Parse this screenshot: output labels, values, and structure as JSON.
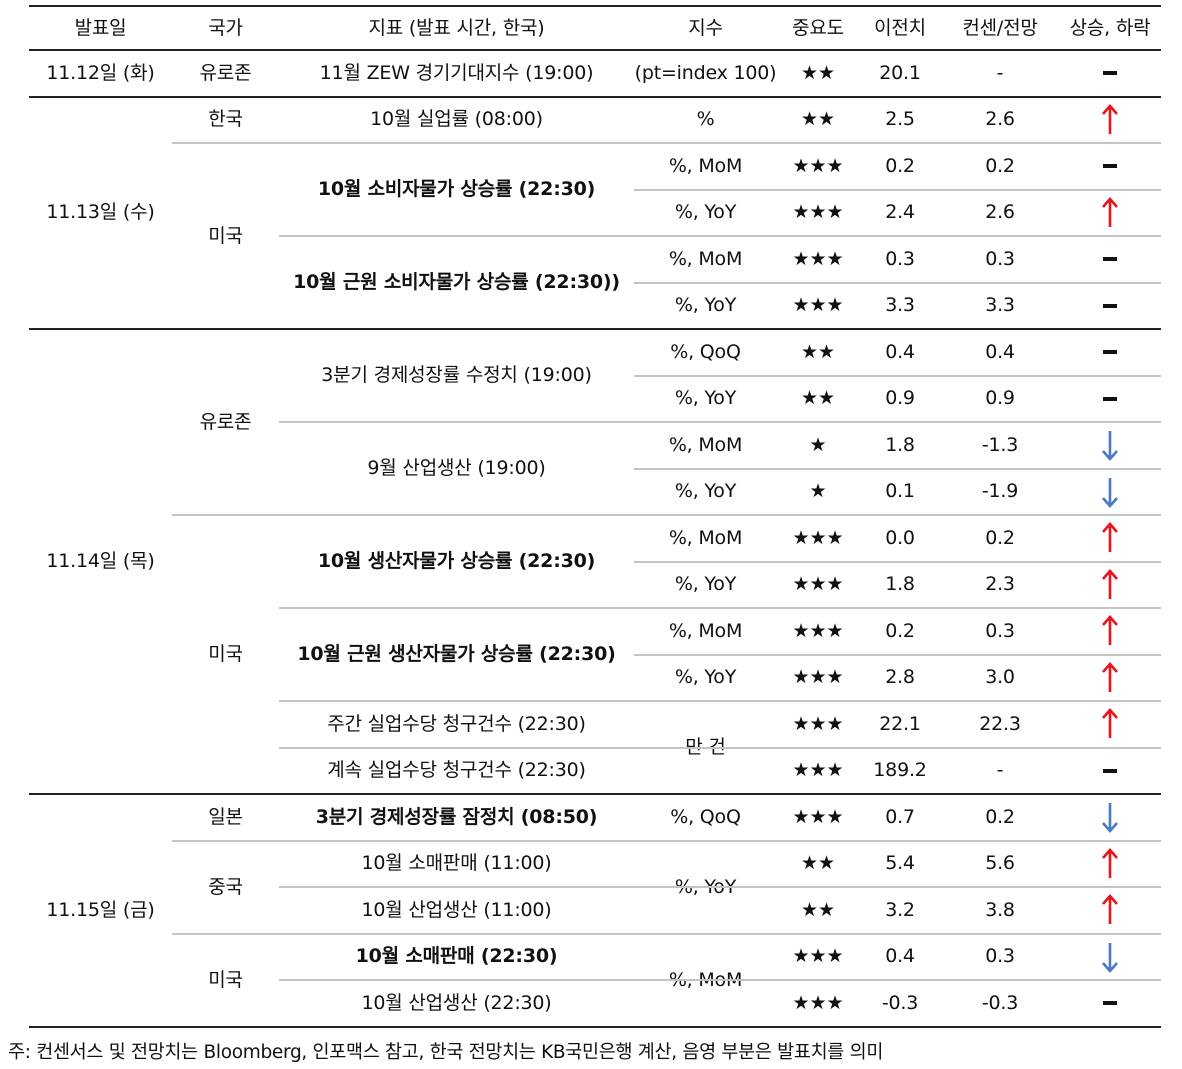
{
  "headers": [
    "발표일",
    "국가",
    "지표 (발표 시간, 한국)",
    "지수",
    "중요도",
    "이전치",
    "컨센/전망",
    "상승, 하락"
  ],
  "colors": {
    "up": "#e8141b",
    "down": "#4a7ac0",
    "flat": "#111111"
  },
  "dates": [
    {
      "label": "11.12일 (화)"
    },
    {
      "label": "11.13일 (수)"
    },
    {
      "label": "11.14일 (목)"
    },
    {
      "label": "11.15일 (금)"
    }
  ],
  "countries": [
    {
      "label": "유로존"
    },
    {
      "label": "한국"
    },
    {
      "label": "미국"
    },
    {
      "label": "유로존"
    },
    {
      "label": "미국"
    },
    {
      "label": "일본"
    },
    {
      "label": "중국"
    },
    {
      "label": "미국"
    }
  ],
  "indicators": [
    {
      "label": "11월 ZEW 경기기대지수 (19:00)",
      "bold": false
    },
    {
      "label": "10월 실업률 (08:00)",
      "bold": false
    },
    {
      "label": "10월 소비자물가 상승률 (22:30)",
      "bold": true
    },
    {
      "label": "10월 근원 소비자물가 상승률 (22:30))",
      "bold": true
    },
    {
      "label": "3분기 경제성장률 수정치 (19:00)",
      "bold": false
    },
    {
      "label": "9월 산업생산 (19:00)",
      "bold": false
    },
    {
      "label": "10월 생산자물가 상승률 (22:30)",
      "bold": true
    },
    {
      "label": "10월 근원 생산자물가 상승률 (22:30)",
      "bold": true
    },
    {
      "label": "주간 실업수당 청구건수 (22:30)",
      "bold": false
    },
    {
      "label": "계속 실업수당 청구건수 (22:30)",
      "bold": false
    },
    {
      "label": "3분기 경제성장률 잠정치 (08:50)",
      "bold": true
    },
    {
      "label": "10월 소매판매 (11:00)",
      "bold": false
    },
    {
      "label": "10월 산업생산 (11:00)",
      "bold": false
    },
    {
      "label": "10월 소매판매 (22:30)",
      "bold": true
    },
    {
      "label": "10월 산업생산 (22:30)",
      "bold": false
    }
  ],
  "units": [
    {
      "label": "(pt=index 100)"
    },
    {
      "label": "%"
    },
    {
      "label": "%, MoM"
    },
    {
      "label": "%, YoY"
    },
    {
      "label": "%, MoM"
    },
    {
      "label": "%, YoY"
    },
    {
      "label": "%, QoQ"
    },
    {
      "label": "%, YoY"
    },
    {
      "label": "%, MoM"
    },
    {
      "label": "%, YoY"
    },
    {
      "label": "%, MoM"
    },
    {
      "label": "%, YoY"
    },
    {
      "label": "%, MoM"
    },
    {
      "label": "%, YoY"
    },
    {
      "label": "만 건"
    },
    {
      "label": "%, QoQ"
    },
    {
      "label": "%, YoY"
    },
    {
      "label": "%, MoM"
    }
  ],
  "rows": [
    {
      "importance": "★★",
      "previous": "20.1",
      "consensus": "-",
      "direction": "flat"
    },
    {
      "importance": "★★",
      "previous": "2.5",
      "consensus": "2.6",
      "direction": "up"
    },
    {
      "importance": "★★★",
      "previous": "0.2",
      "consensus": "0.2",
      "direction": "flat"
    },
    {
      "importance": "★★★",
      "previous": "2.4",
      "consensus": "2.6",
      "direction": "up"
    },
    {
      "importance": "★★★",
      "previous": "0.3",
      "consensus": "0.3",
      "direction": "flat"
    },
    {
      "importance": "★★★",
      "previous": "3.3",
      "consensus": "3.3",
      "direction": "flat"
    },
    {
      "importance": "★★",
      "previous": "0.4",
      "consensus": "0.4",
      "direction": "flat"
    },
    {
      "importance": "★★",
      "previous": "0.9",
      "consensus": "0.9",
      "direction": "flat"
    },
    {
      "importance": "★",
      "previous": "1.8",
      "consensus": "-1.3",
      "direction": "down"
    },
    {
      "importance": "★",
      "previous": "0.1",
      "consensus": "-1.9",
      "direction": "down"
    },
    {
      "importance": "★★★",
      "previous": "0.0",
      "consensus": "0.2",
      "direction": "up"
    },
    {
      "importance": "★★★",
      "previous": "1.8",
      "consensus": "2.3",
      "direction": "up"
    },
    {
      "importance": "★★★",
      "previous": "0.2",
      "consensus": "0.3",
      "direction": "up"
    },
    {
      "importance": "★★★",
      "previous": "2.8",
      "consensus": "3.0",
      "direction": "up"
    },
    {
      "importance": "★★★",
      "previous": "22.1",
      "consensus": "22.3",
      "direction": "up"
    },
    {
      "importance": "★★★",
      "previous": "189.2",
      "consensus": "-",
      "direction": "flat"
    },
    {
      "importance": "★★★",
      "previous": "0.7",
      "consensus": "0.2",
      "direction": "down"
    },
    {
      "importance": "★★",
      "previous": "5.4",
      "consensus": "5.6",
      "direction": "up"
    },
    {
      "importance": "★★",
      "previous": "3.2",
      "consensus": "3.8",
      "direction": "up"
    },
    {
      "importance": "★★★",
      "previous": "0.4",
      "consensus": "0.3",
      "direction": "down"
    },
    {
      "importance": "★★★",
      "previous": "-0.3",
      "consensus": "-0.3",
      "direction": "flat"
    }
  ],
  "note": "주: 컨센서스 및 전망치는 Bloomberg, 인포맥스 참고, 한국 전망치는 KB국민은행 계산, 음영 부분은 발표치를 의미"
}
